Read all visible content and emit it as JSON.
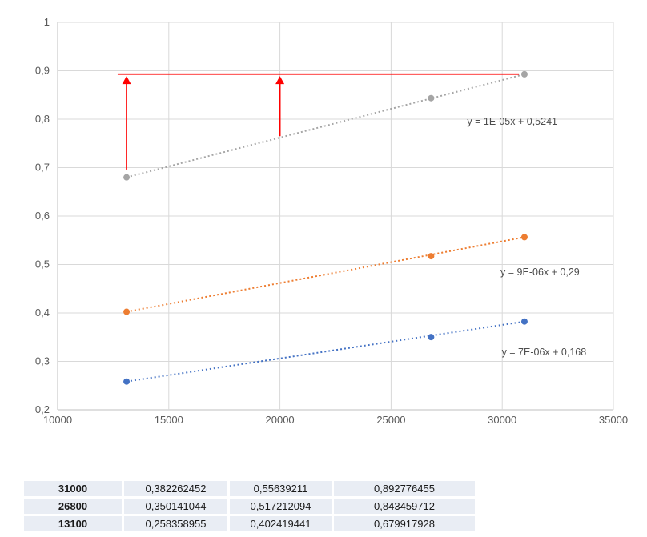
{
  "colors": {
    "gridline": "#d9d9d9",
    "axis_line": "#bfbfbf",
    "tick_text": "#595959",
    "equation_text": "#4d4d4d",
    "annotation_red": "#ff0000",
    "table_cell_fill": "#e9edf4",
    "series_blue": "#4472c4",
    "series_orange": "#ed7d31",
    "series_gray": "#a5a5a5"
  },
  "chart_data": {
    "type": "scatter",
    "title": "",
    "xlabel": "",
    "ylabel": "",
    "xlim": [
      10000,
      35000
    ],
    "ylim": [
      0.2,
      1
    ],
    "grid": true,
    "legend_position": "none",
    "x_ticks": {
      "values": [
        10000,
        15000,
        20000,
        25000,
        30000,
        35000
      ],
      "labels": [
        "10000",
        "15000",
        "20000",
        "25000",
        "30000",
        "35000"
      ]
    },
    "y_ticks": {
      "values": [
        0.2,
        0.3,
        0.4,
        0.5,
        0.6,
        0.7,
        0.8,
        0.9,
        1
      ],
      "labels": [
        "0,2",
        "0,3",
        "0,4",
        "0,5",
        "0,6",
        "0,7",
        "0,8",
        "0,9",
        "1"
      ]
    },
    "x": [
      13100,
      26800,
      31000
    ],
    "series": [
      {
        "name": "blue-series",
        "color": "#4472c4",
        "values": [
          0.258358955,
          0.350141044,
          0.382262452
        ],
        "trendline_style": "dotted",
        "trendline_label": "y = 7E-06x + 0,168",
        "label_pos": {
          "x": 31880,
          "y": 0.319
        }
      },
      {
        "name": "orange-series",
        "color": "#ed7d31",
        "values": [
          0.402419441,
          0.517212094,
          0.55639211
        ],
        "trendline_style": "dotted",
        "trendline_label": "y = 9E-06x + 0,29",
        "label_pos": {
          "x": 31700,
          "y": 0.484
        }
      },
      {
        "name": "gray-series",
        "color": "#a5a5a5",
        "values": [
          0.679917928,
          0.843459712,
          0.892776455
        ],
        "trendline_style": "dotted",
        "trendline_label": "y = 1E-05x + 0,5241",
        "label_pos": {
          "x": 30450,
          "y": 0.795
        }
      }
    ],
    "annotations": {
      "color": "#ff0000",
      "hline": {
        "y": 0.893,
        "x1": 12700,
        "x2": 30750
      },
      "arrows": [
        {
          "x": 13100,
          "y_from": 0.696,
          "y_to": 0.889
        },
        {
          "x": 20000,
          "y_from": 0.765,
          "y_to": 0.889
        }
      ]
    }
  },
  "table": {
    "rows": [
      [
        "31000",
        "0,382262452",
        "0,55639211",
        "0,892776455"
      ],
      [
        "26800",
        "0,350141044",
        "0,517212094",
        "0,843459712"
      ],
      [
        "13100",
        "0,258358955",
        "0,402419441",
        "0,679917928"
      ]
    ]
  }
}
